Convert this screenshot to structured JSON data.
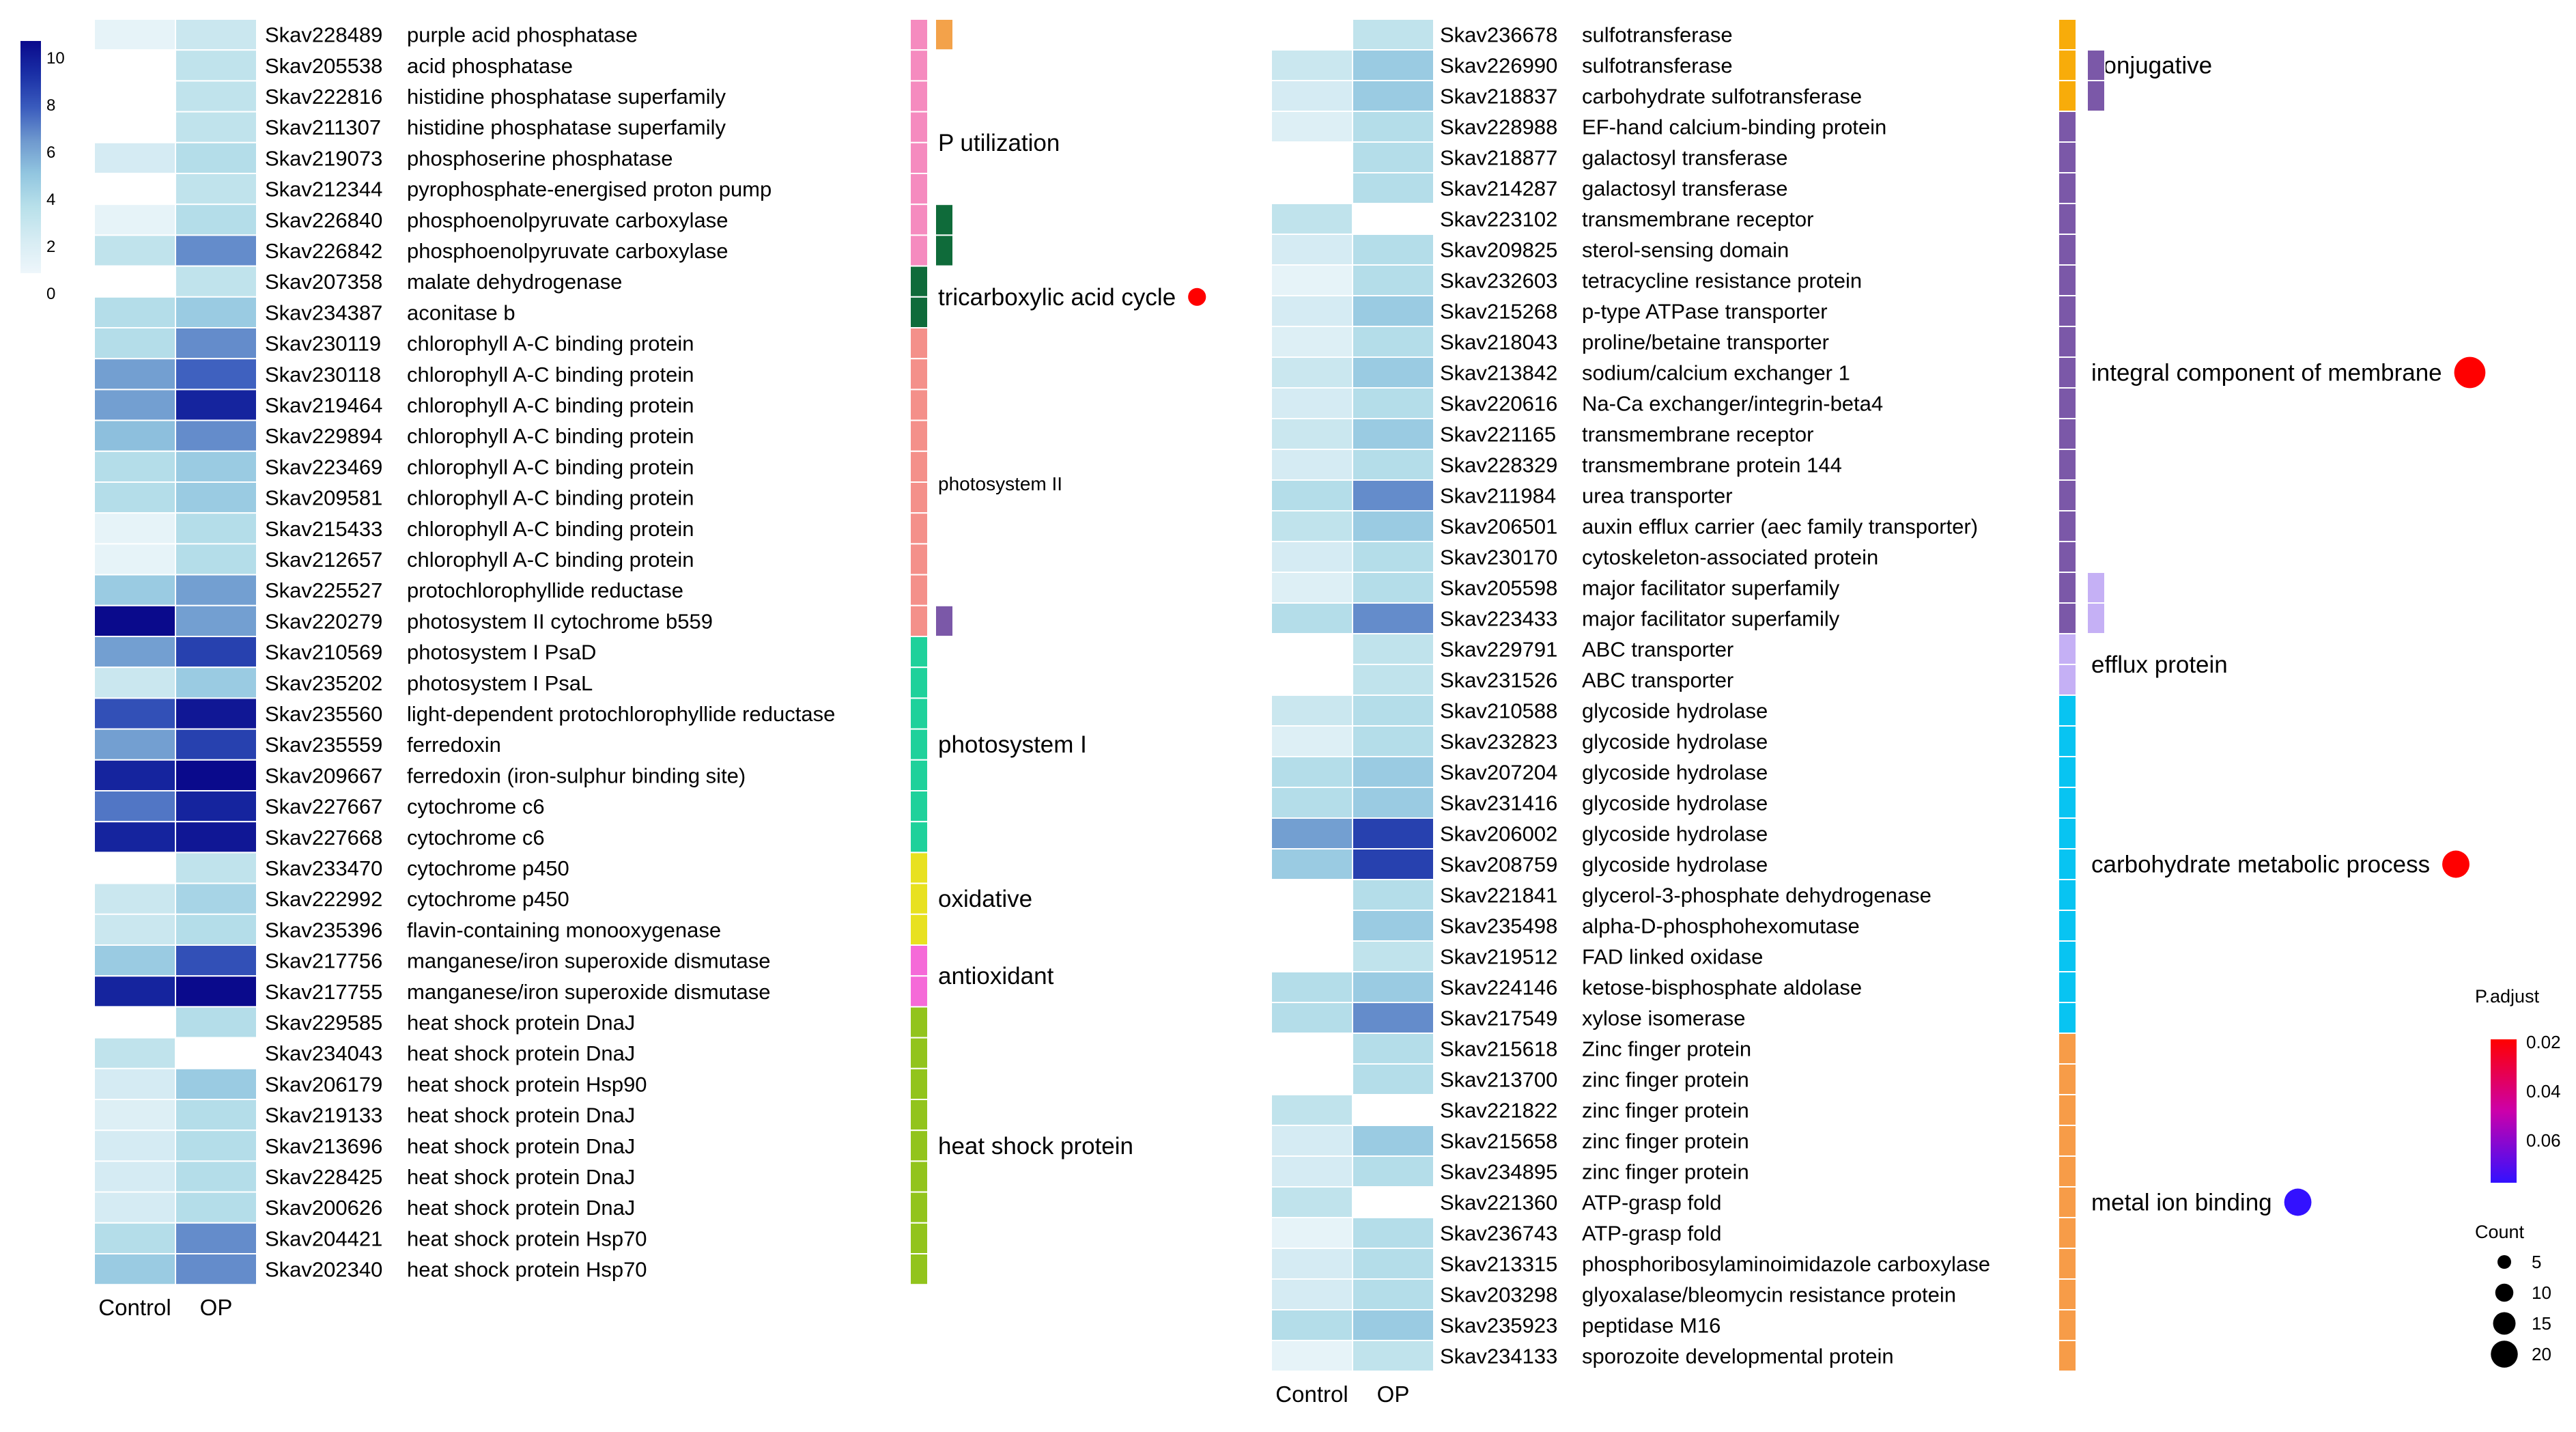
{
  "chart_data": {
    "type": "heatmap",
    "columns": [
      "Control",
      "OP"
    ],
    "color_scale": {
      "ticks": [
        "10",
        "8",
        "6",
        "4",
        "2",
        "0"
      ],
      "stops": [
        "#eef6fb",
        "#d6ecf3",
        "#b8e0ea",
        "#92c6e0",
        "#6e98ce",
        "#3a5bbd",
        "#1a2fa6",
        "#0a0a8c"
      ]
    },
    "p_adjust_legend": {
      "title": "P.adjust",
      "ticks": [
        "0.02",
        "0.04",
        "0.06"
      ],
      "colors": [
        "#ff0000",
        "#cc00aa",
        "#3311ff"
      ]
    },
    "count_legend": {
      "title": "Count",
      "labels": [
        "5",
        "10",
        "15",
        "20"
      ],
      "values": [
        5,
        10,
        15,
        20
      ]
    },
    "panels": [
      {
        "rows": [
          {
            "id": "Skav228489",
            "desc": "purple acid phosphatase",
            "control": 0.5,
            "op": 2
          },
          {
            "id": "Skav205538",
            "desc": "acid phosphatase",
            "control": 0,
            "op": 2.5
          },
          {
            "id": "Skav222816",
            "desc": "histidine phosphatase superfamily",
            "control": 0,
            "op": 2.5
          },
          {
            "id": "Skav211307",
            "desc": "histidine phosphatase superfamily",
            "control": 0,
            "op": 2.5
          },
          {
            "id": "Skav219073",
            "desc": "phosphoserine phosphatase",
            "control": 1.5,
            "op": 3
          },
          {
            "id": "Skav212344",
            "desc": "pyrophosphate-energised proton pump",
            "control": 0,
            "op": 2.5
          },
          {
            "id": "Skav226840",
            "desc": "phosphoenolpyruvate carboxylase",
            "control": 0.5,
            "op": 3
          },
          {
            "id": "Skav226842",
            "desc": "phosphoenolpyruvate carboxylase",
            "control": 2.5,
            "op": 6
          },
          {
            "id": "Skav207358",
            "desc": "malate dehydrogenase",
            "control": 0,
            "op": 2.5
          },
          {
            "id": "Skav234387",
            "desc": "aconitase b",
            "control": 3,
            "op": 4
          },
          {
            "id": "Skav230119",
            "desc": "chlorophyll A-C binding protein",
            "control": 3,
            "op": 6
          },
          {
            "id": "Skav230118",
            "desc": "chlorophyll A-C binding protein",
            "control": 5.5,
            "op": 7
          },
          {
            "id": "Skav219464",
            "desc": "chlorophyll A-C binding protein",
            "control": 5.5,
            "op": 9
          },
          {
            "id": "Skav229894",
            "desc": "chlorophyll A-C binding protein",
            "control": 4.5,
            "op": 6
          },
          {
            "id": "Skav223469",
            "desc": "chlorophyll A-C binding protein",
            "control": 3,
            "op": 4
          },
          {
            "id": "Skav209581",
            "desc": "chlorophyll A-C binding protein",
            "control": 3,
            "op": 4
          },
          {
            "id": "Skav215433",
            "desc": "chlorophyll A-C binding protein",
            "control": 0.5,
            "op": 3
          },
          {
            "id": "Skav212657",
            "desc": "chlorophyll A-C binding protein",
            "control": 0.5,
            "op": 3
          },
          {
            "id": "Skav225527",
            "desc": "protochlorophyllide reductase",
            "control": 4,
            "op": 5.5
          },
          {
            "id": "Skav220279",
            "desc": "photosystem II cytochrome b559",
            "control": 10,
            "op": 5.5
          },
          {
            "id": "Skav210569",
            "desc": "photosystem I PsaD",
            "control": 5.5,
            "op": 8
          },
          {
            "id": "Skav235202",
            "desc": "photosystem I PsaL",
            "control": 2,
            "op": 4
          },
          {
            "id": "Skav235560",
            "desc": "light-dependent protochlorophyllide reductase",
            "control": 7.5,
            "op": 9.5
          },
          {
            "id": "Skav235559",
            "desc": "ferredoxin",
            "control": 5.5,
            "op": 8
          },
          {
            "id": "Skav209667",
            "desc": "ferredoxin (iron-sulphur binding site)",
            "control": 9,
            "op": 10
          },
          {
            "id": "Skav227667",
            "desc": "cytochrome c6",
            "control": 6.5,
            "op": 9
          },
          {
            "id": "Skav227668",
            "desc": "cytochrome c6",
            "control": 9,
            "op": 9.5
          },
          {
            "id": "Skav233470",
            "desc": "cytochrome p450",
            "control": 0,
            "op": 2.5
          },
          {
            "id": "Skav222992",
            "desc": "cytochrome p450",
            "control": 2,
            "op": 3.5
          },
          {
            "id": "Skav235396",
            "desc": "flavin-containing monooxygenase",
            "control": 2,
            "op": 3
          },
          {
            "id": "Skav217756",
            "desc": "manganese/iron superoxide dismutase",
            "control": 4,
            "op": 7.5
          },
          {
            "id": "Skav217755",
            "desc": "manganese/iron superoxide dismutase",
            "control": 9,
            "op": 10
          },
          {
            "id": "Skav229585",
            "desc": "heat shock protein DnaJ",
            "control": 0,
            "op": 3
          },
          {
            "id": "Skav234043",
            "desc": "heat shock protein DnaJ",
            "control": 2.5,
            "op": 0
          },
          {
            "id": "Skav206179",
            "desc": "heat shock protein Hsp90",
            "control": 1.5,
            "op": 4
          },
          {
            "id": "Skav219133",
            "desc": "heat shock protein DnaJ",
            "control": 1,
            "op": 3
          },
          {
            "id": "Skav213696",
            "desc": "heat shock protein DnaJ",
            "control": 1.5,
            "op": 3
          },
          {
            "id": "Skav228425",
            "desc": "heat shock protein DnaJ",
            "control": 1.5,
            "op": 3
          },
          {
            "id": "Skav200626",
            "desc": "heat shock protein DnaJ",
            "control": 1.5,
            "op": 3
          },
          {
            "id": "Skav204421",
            "desc": "heat shock protein Hsp70",
            "control": 3,
            "op": 6
          },
          {
            "id": "Skav202340",
            "desc": "heat shock protein Hsp70",
            "control": 4,
            "op": 6
          }
        ],
        "categories": [
          {
            "label": "",
            "color": "#f3a24a",
            "start": 0,
            "end": 0,
            "col": 1
          },
          {
            "label": "P utilization",
            "color": "#f58bbf",
            "start": 0,
            "end": 7,
            "col": 0
          },
          {
            "label": "",
            "color": "#0f6b3a",
            "start": 6,
            "end": 7,
            "col": 1
          },
          {
            "label": "tricarboxylic acid cycle",
            "color": "#0f6b3a",
            "start": 8,
            "end": 9,
            "col": 0
          },
          {
            "label": "photosystem II",
            "color": "#f4908a",
            "start": 10,
            "end": 19,
            "col": 0
          },
          {
            "label": "",
            "color": "#7b58a8",
            "start": 19,
            "end": 19,
            "col": 1
          },
          {
            "label": "photosystem I",
            "color": "#1fd19b",
            "start": 20,
            "end": 26,
            "col": 0
          },
          {
            "label": "oxidative",
            "color": "#e8e120",
            "start": 27,
            "end": 29,
            "col": 0
          },
          {
            "label": "antioxidant",
            "color": "#f56ad8",
            "start": 30,
            "end": 31,
            "col": 0
          },
          {
            "label": "heat shock protein",
            "color": "#92c41c",
            "start": 32,
            "end": 40,
            "col": 0
          }
        ],
        "enrichment_dots": [
          {
            "category": "tricarboxylic acid cycle",
            "p_adjust": 0.02,
            "count": 2
          }
        ]
      },
      {
        "rows": [
          {
            "id": "Skav236678",
            "desc": "sulfotransferase",
            "control": 0,
            "op": 2.5
          },
          {
            "id": "Skav226990",
            "desc": "sulfotransferase",
            "control": 2,
            "op": 4
          },
          {
            "id": "Skav218837",
            "desc": "carbohydrate sulfotransferase",
            "control": 1.5,
            "op": 4
          },
          {
            "id": "Skav228988",
            "desc": "EF-hand calcium-binding protein",
            "control": 1,
            "op": 3
          },
          {
            "id": "Skav218877",
            "desc": "galactosyl transferase",
            "control": 0,
            "op": 3
          },
          {
            "id": "Skav214287",
            "desc": "galactosyl transferase",
            "control": 0,
            "op": 3
          },
          {
            "id": "Skav223102",
            "desc": "transmembrane receptor",
            "control": 2.5,
            "op": 0
          },
          {
            "id": "Skav209825",
            "desc": "sterol-sensing domain",
            "control": 1.5,
            "op": 3
          },
          {
            "id": "Skav232603",
            "desc": "tetracycline resistance protein",
            "control": 0.5,
            "op": 3
          },
          {
            "id": "Skav215268",
            "desc": "p-type ATPase transporter",
            "control": 1.5,
            "op": 4
          },
          {
            "id": "Skav218043",
            "desc": "proline/betaine transporter",
            "control": 1,
            "op": 3
          },
          {
            "id": "Skav213842",
            "desc": "sodium/calcium exchanger 1",
            "control": 2,
            "op": 4
          },
          {
            "id": "Skav220616",
            "desc": "Na-Ca exchanger/integrin-beta4",
            "control": 1.5,
            "op": 3
          },
          {
            "id": "Skav221165",
            "desc": "transmembrane receptor",
            "control": 2,
            "op": 4
          },
          {
            "id": "Skav228329",
            "desc": "transmembrane protein 144",
            "control": 1.5,
            "op": 3
          },
          {
            "id": "Skav211984",
            "desc": "urea transporter",
            "control": 3,
            "op": 6
          },
          {
            "id": "Skav206501",
            "desc": "auxin efflux carrier (aec family transporter)",
            "control": 2.5,
            "op": 4
          },
          {
            "id": "Skav230170",
            "desc": "cytoskeleton-associated protein",
            "control": 1.5,
            "op": 3
          },
          {
            "id": "Skav205598",
            "desc": "major facilitator superfamily",
            "control": 1,
            "op": 3
          },
          {
            "id": "Skav223433",
            "desc": "major facilitator superfamily",
            "control": 3,
            "op": 6
          },
          {
            "id": "Skav229791",
            "desc": "ABC transporter",
            "control": 0,
            "op": 2.5
          },
          {
            "id": "Skav231526",
            "desc": "ABC transporter",
            "control": 0,
            "op": 2.5
          },
          {
            "id": "Skav210588",
            "desc": "glycoside hydrolase",
            "control": 2,
            "op": 3
          },
          {
            "id": "Skav232823",
            "desc": "glycoside hydrolase",
            "control": 1,
            "op": 3
          },
          {
            "id": "Skav207204",
            "desc": "glycoside hydrolase",
            "control": 3,
            "op": 4
          },
          {
            "id": "Skav231416",
            "desc": "glycoside hydrolase",
            "control": 3,
            "op": 4
          },
          {
            "id": "Skav206002",
            "desc": "glycoside hydrolase",
            "control": 5.5,
            "op": 8
          },
          {
            "id": "Skav208759",
            "desc": "glycoside hydrolase",
            "control": 4,
            "op": 8
          },
          {
            "id": "Skav221841",
            "desc": "glycerol-3-phosphate dehydrogenase",
            "control": 0,
            "op": 3
          },
          {
            "id": "Skav235498",
            "desc": "alpha-D-phosphohexomutase",
            "control": 0,
            "op": 4
          },
          {
            "id": "Skav219512",
            "desc": "FAD linked oxidase",
            "control": 0,
            "op": 2.5
          },
          {
            "id": "Skav224146",
            "desc": "ketose-bisphosphate aldolase",
            "control": 3,
            "op": 4
          },
          {
            "id": "Skav217549",
            "desc": "xylose isomerase",
            "control": 3,
            "op": 6
          },
          {
            "id": "Skav215618",
            "desc": "Zinc finger protein",
            "control": 0,
            "op": 3
          },
          {
            "id": "Skav213700",
            "desc": "zinc finger protein",
            "control": 0,
            "op": 3
          },
          {
            "id": "Skav221822",
            "desc": "zinc finger protein",
            "control": 2.5,
            "op": 0
          },
          {
            "id": "Skav215658",
            "desc": "zinc finger protein",
            "control": 1.5,
            "op": 4
          },
          {
            "id": "Skav234895",
            "desc": "zinc finger protein",
            "control": 1.5,
            "op": 3
          },
          {
            "id": "Skav221360",
            "desc": "ATP-grasp fold",
            "control": 2.5,
            "op": 0
          },
          {
            "id": "Skav236743",
            "desc": "ATP-grasp fold",
            "control": 0.5,
            "op": 3
          },
          {
            "id": "Skav213315",
            "desc": "phosphoribosylaminoimidazole carboxylase",
            "control": 1.5,
            "op": 3
          },
          {
            "id": "Skav203298",
            "desc": "glyoxalase/bleomycin resistance protein",
            "control": 1.5,
            "op": 3
          },
          {
            "id": "Skav235923",
            "desc": "peptidase M16",
            "control": 3,
            "op": 4
          },
          {
            "id": "Skav234133",
            "desc": "sporozoite developmental protein",
            "control": 0.5,
            "op": 2.5
          }
        ],
        "categories": [
          {
            "label": "conjugative",
            "color": "#f8ac0a",
            "start": 0,
            "end": 2,
            "col": 0
          },
          {
            "label": "",
            "color": "#7b58a8",
            "start": 1,
            "end": 2,
            "col": 1
          },
          {
            "label": "integral component of membrane",
            "color": "#7b58a8",
            "start": 3,
            "end": 19,
            "col": 0
          },
          {
            "label": "",
            "color": "#c5b0f5",
            "start": 18,
            "end": 19,
            "col": 1
          },
          {
            "label": "efflux protein",
            "color": "#c5b0f5",
            "start": 20,
            "end": 21,
            "col": 0
          },
          {
            "label": "carbohydrate metabolic process",
            "color": "#08c4f2",
            "start": 22,
            "end": 32,
            "col": 0
          },
          {
            "label": "metal ion binding",
            "color": "#f79c48",
            "start": 33,
            "end": 43,
            "col": 0
          }
        ],
        "enrichment_dots": [
          {
            "category": "integral component of membrane",
            "p_adjust": 0.02,
            "count": 17
          },
          {
            "category": "carbohydrate metabolic process",
            "p_adjust": 0.02,
            "count": 11
          },
          {
            "category": "metal ion binding",
            "p_adjust": 0.07,
            "count": 11
          }
        ]
      }
    ]
  }
}
